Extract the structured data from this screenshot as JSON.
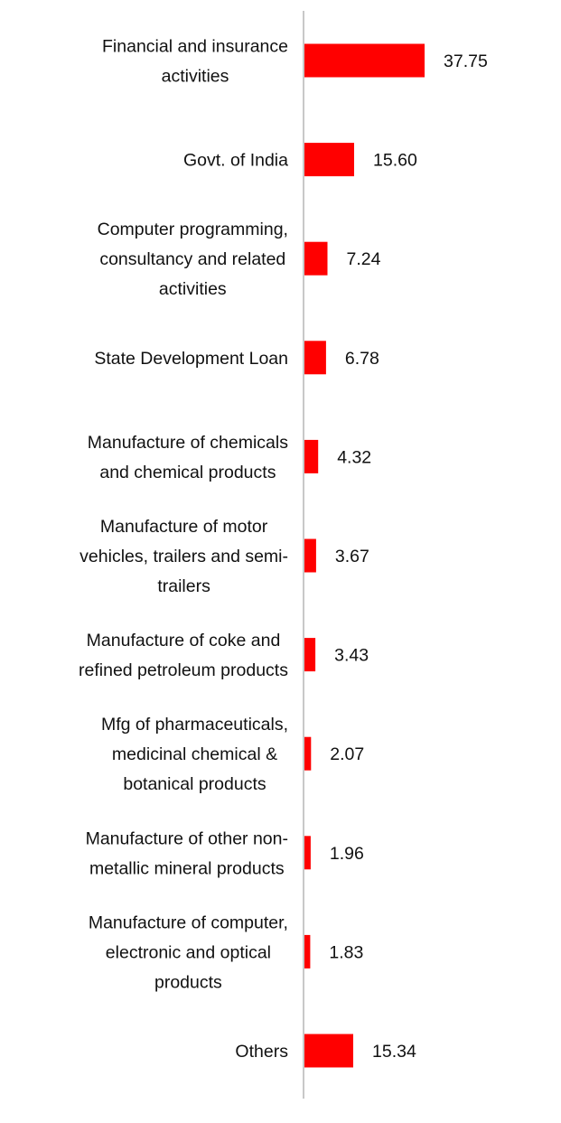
{
  "chart_data": {
    "type": "bar",
    "orientation": "horizontal",
    "categories": [
      [
        "Financial and insurance",
        "activities"
      ],
      [
        "Govt. of India"
      ],
      [
        "Computer programming,",
        "consultancy and related",
        "activities"
      ],
      [
        "State Development Loan"
      ],
      [
        "Manufacture of chemicals",
        "and chemical products"
      ],
      [
        "Manufacture of motor",
        "vehicles, trailers and semi-",
        "trailers"
      ],
      [
        "Manufacture of coke and",
        "refined petroleum products"
      ],
      [
        "Mfg of pharmaceuticals,",
        "medicinal chemical &",
        "botanical products"
      ],
      [
        "Manufacture of other non-",
        "metallic mineral products"
      ],
      [
        "Manufacture of computer,",
        "electronic and optical",
        "products"
      ],
      [
        "Others"
      ]
    ],
    "values": [
      37.75,
      15.6,
      7.24,
      6.78,
      4.32,
      3.67,
      3.43,
      2.07,
      1.96,
      1.83,
      15.34
    ],
    "value_labels": [
      "37.75",
      "15.60",
      "7.24",
      "6.78",
      "4.32",
      "3.67",
      "3.43",
      "2.07",
      "1.96",
      "1.83",
      "15.34"
    ],
    "bar_color": "#ff0000",
    "axis_color": "#c8c8c8",
    "grid": false,
    "legend": "none"
  }
}
